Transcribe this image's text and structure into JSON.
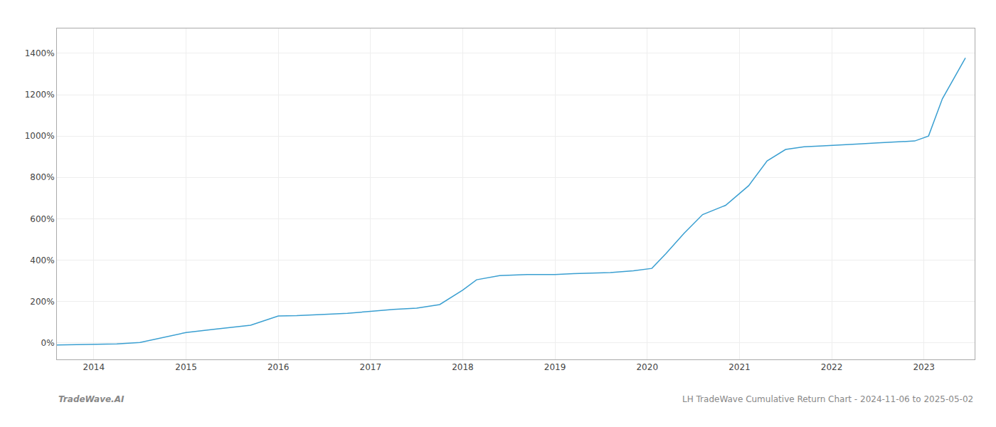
{
  "chart_data": {
    "type": "line",
    "x": [
      2013.6,
      2014.0,
      2014.25,
      2014.5,
      2014.75,
      2015.0,
      2015.3,
      2015.7,
      2016.0,
      2016.2,
      2016.5,
      2016.75,
      2017.0,
      2017.25,
      2017.5,
      2017.75,
      2018.0,
      2018.15,
      2018.4,
      2018.7,
      2019.0,
      2019.2,
      2019.4,
      2019.6,
      2019.85,
      2020.05,
      2020.2,
      2020.4,
      2020.6,
      2020.85,
      2021.1,
      2021.3,
      2021.5,
      2021.7,
      2021.9,
      2022.1,
      2022.3,
      2022.5,
      2022.7,
      2022.9,
      2023.05,
      2023.2,
      2023.45
    ],
    "values": [
      -10,
      -8,
      -5,
      2,
      25,
      50,
      65,
      85,
      130,
      132,
      138,
      143,
      152,
      162,
      168,
      185,
      255,
      305,
      325,
      330,
      330,
      335,
      337,
      340,
      348,
      360,
      430,
      530,
      620,
      665,
      760,
      880,
      935,
      948,
      952,
      958,
      962,
      967,
      972,
      976,
      1000,
      1180,
      1378
    ],
    "color": "#3a9fd1",
    "xlim": [
      2013.6,
      2023.55
    ],
    "xticks": [
      2014,
      2015,
      2016,
      2017,
      2018,
      2019,
      2020,
      2021,
      2022,
      2023
    ],
    "ylim": [
      -80,
      1520
    ],
    "yticks": [
      {
        "value": 0,
        "label": "0%"
      },
      {
        "value": 200,
        "label": "200%"
      },
      {
        "value": 400,
        "label": "400%"
      },
      {
        "value": 600,
        "label": "600%"
      },
      {
        "value": 800,
        "label": "800%"
      },
      {
        "value": 1000,
        "label": "1000%"
      },
      {
        "value": 1200,
        "label": "1200%"
      },
      {
        "value": 1400,
        "label": "1400%"
      }
    ],
    "grid": true,
    "annotations": [
      "TradeWave.AI",
      "LH TradeWave Cumulative Return Chart - 2024-11-06 to 2025-05-02"
    ]
  }
}
